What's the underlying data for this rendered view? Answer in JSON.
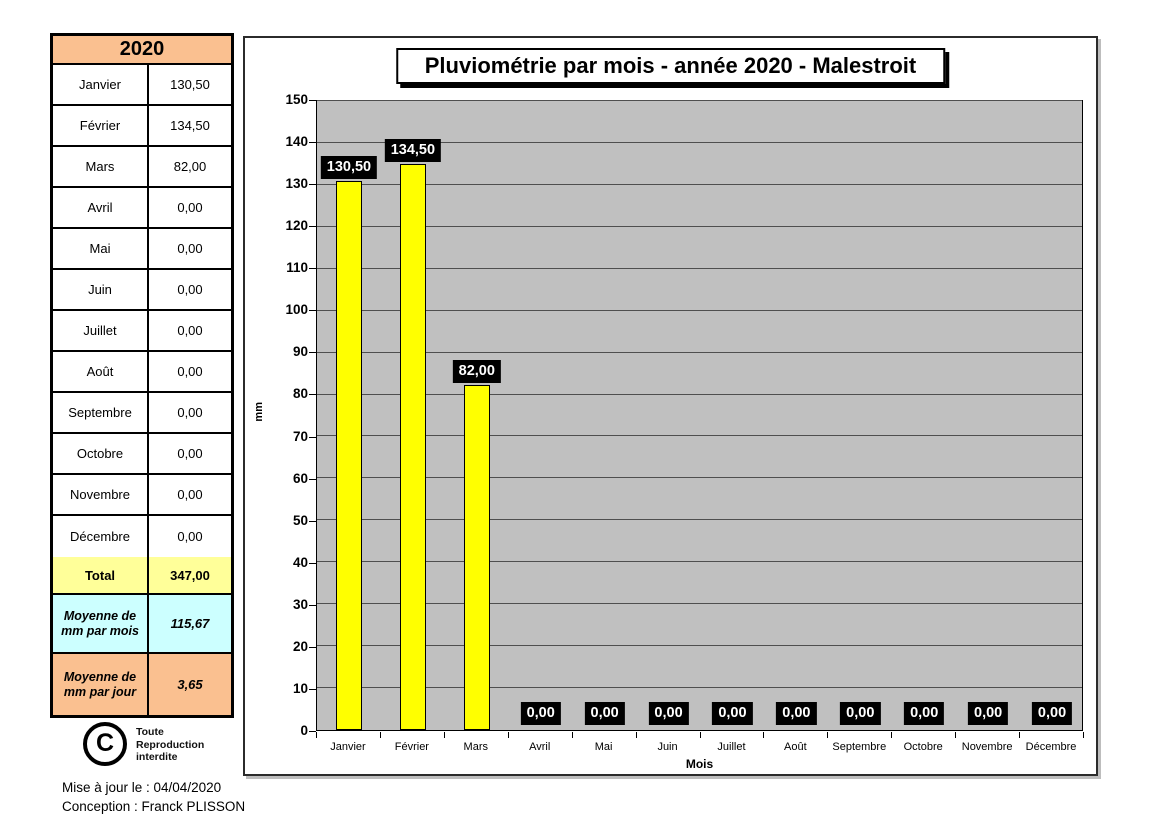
{
  "table": {
    "year": "2020",
    "rows": [
      {
        "label": "Janvier",
        "value": "130,50"
      },
      {
        "label": "Février",
        "value": "134,50"
      },
      {
        "label": "Mars",
        "value": "82,00"
      },
      {
        "label": "Avril",
        "value": "0,00"
      },
      {
        "label": "Mai",
        "value": "0,00"
      },
      {
        "label": "Juin",
        "value": "0,00"
      },
      {
        "label": "Juillet",
        "value": "0,00"
      },
      {
        "label": "Août",
        "value": "0,00"
      },
      {
        "label": "Septembre",
        "value": "0,00"
      },
      {
        "label": "Octobre",
        "value": "0,00"
      },
      {
        "label": "Novembre",
        "value": "0,00"
      },
      {
        "label": "Décembre",
        "value": "0,00"
      }
    ],
    "total": {
      "label": "Total",
      "value": "347,00"
    },
    "avg_month": {
      "label": "Moyenne de mm par mois",
      "value": "115,67"
    },
    "avg_day": {
      "label": "Moyenne de mm par jour",
      "value": "3,65"
    }
  },
  "copyright": {
    "symbol": "C",
    "lines": [
      "Toute",
      "Reproduction",
      "interdite"
    ]
  },
  "footer": {
    "updated": "Mise à jour le : 04/04/2020",
    "conception": "Conception : Franck PLISSON"
  },
  "chart_data": {
    "type": "bar",
    "title": "Pluviométrie par mois - année 2020 - Malestroit",
    "categories": [
      "Janvier",
      "Février",
      "Mars",
      "Avril",
      "Mai",
      "Juin",
      "Juillet",
      "Août",
      "Septembre",
      "Octobre",
      "Novembre",
      "Décembre"
    ],
    "values": [
      130.5,
      134.5,
      82,
      0,
      0,
      0,
      0,
      0,
      0,
      0,
      0,
      0
    ],
    "value_labels": [
      "130,50",
      "134,50",
      "82,00",
      "0,00",
      "0,00",
      "0,00",
      "0,00",
      "0,00",
      "0,00",
      "0,00",
      "0,00",
      "0,00"
    ],
    "xlabel": "Mois",
    "ylabel": "mm",
    "ylim": [
      0,
      150
    ],
    "ytick_step": 10,
    "grid": true,
    "legend": "none"
  },
  "colors": {
    "header_orange": "#FAC090",
    "total_yellow": "#FFFF99",
    "avg_cyan": "#CCFFFF",
    "avg_orange": "#FAC090",
    "bar_yellow": "#FFFF00",
    "plot_bg": "#C0C0C0",
    "label_bg": "#000000",
    "label_fg": "#FFFFFF"
  }
}
